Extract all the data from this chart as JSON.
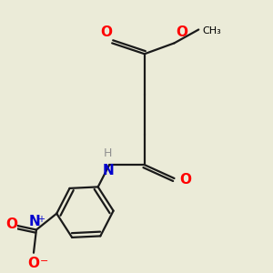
{
  "bg_color": "#ebebd8",
  "atom_colors": {
    "O": "#ff0000",
    "N": "#0000cd",
    "H": "#909090"
  },
  "bond_color": "#1a1a1a",
  "bond_width": 1.6,
  "font_size_atoms": 11,
  "font_size_small": 9,
  "font_size_methyl": 8
}
